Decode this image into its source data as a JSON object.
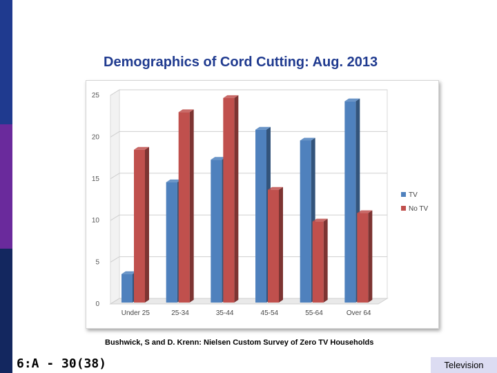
{
  "slide": {
    "title": "Demographics of Cord Cutting: Aug. 2013",
    "source": "Bushwick, S and D. Krenn: Nielsen Custom Survey of Zero TV Households",
    "slide_number": "6:A - 30(38)",
    "footer_tag": "Television"
  },
  "colors": {
    "band_top": "#1f3a8f",
    "band_middle": "#6a2a9c",
    "band_bottom": "#13275f",
    "title": "#1f3a8f",
    "tv": "#4f81bd",
    "no_tv": "#c0504d"
  },
  "chart_data": {
    "type": "bar",
    "title": "",
    "xlabel": "",
    "ylabel": "",
    "categories": [
      "Under 25",
      "25-34",
      "35-44",
      "45-54",
      "55-64",
      "Over 64"
    ],
    "series": [
      {
        "name": "TV",
        "values": [
          3.5,
          14.5,
          17.2,
          20.8,
          19.5,
          24.2
        ]
      },
      {
        "name": "No TV",
        "values": [
          18.4,
          22.9,
          24.6,
          13.6,
          9.8,
          10.8
        ]
      }
    ],
    "ylim": [
      0,
      25
    ],
    "yticks": [
      "0",
      "5",
      "10",
      "15",
      "20",
      "25"
    ],
    "grid": true,
    "legend": "right"
  }
}
